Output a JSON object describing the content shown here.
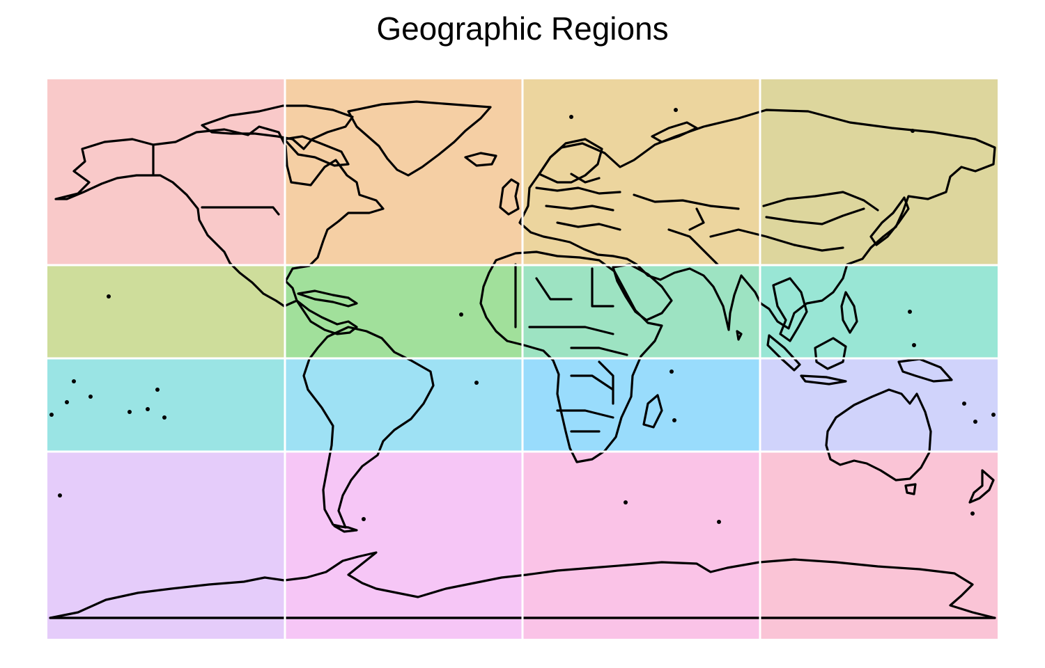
{
  "title": "Geographic Regions",
  "grid": {
    "lon_breaks": [
      -180,
      -90,
      0,
      90,
      180
    ],
    "lat_breaks": [
      -90,
      -30,
      0,
      30,
      90
    ],
    "lon_range": [
      -180,
      180
    ],
    "lat_range": [
      -90,
      90
    ],
    "divider_color": "#ffffff",
    "outline_color": "#000000"
  },
  "regions": [
    {
      "id": "r1-c1",
      "row": 0,
      "col": 0,
      "lon": [
        -180,
        -90
      ],
      "lat": [
        30,
        90
      ],
      "color": "#f9c9c9"
    },
    {
      "id": "r1-c2",
      "row": 0,
      "col": 1,
      "lon": [
        -90,
        0
      ],
      "lat": [
        30,
        90
      ],
      "color": "#f5cfa4"
    },
    {
      "id": "r1-c3",
      "row": 0,
      "col": 2,
      "lon": [
        0,
        90
      ],
      "lat": [
        30,
        90
      ],
      "color": "#ecd59e"
    },
    {
      "id": "r1-c4",
      "row": 0,
      "col": 3,
      "lon": [
        90,
        180
      ],
      "lat": [
        30,
        90
      ],
      "color": "#ddd69d"
    },
    {
      "id": "r2-c1",
      "row": 1,
      "col": 0,
      "lon": [
        -180,
        -90
      ],
      "lat": [
        0,
        30
      ],
      "color": "#cedd9b"
    },
    {
      "id": "r2-c2",
      "row": 1,
      "col": 1,
      "lon": [
        -90,
        0
      ],
      "lat": [
        0,
        30
      ],
      "color": "#a1e09b"
    },
    {
      "id": "r2-c3",
      "row": 1,
      "col": 2,
      "lon": [
        0,
        90
      ],
      "lat": [
        0,
        30
      ],
      "color": "#9de3c2"
    },
    {
      "id": "r2-c4",
      "row": 1,
      "col": 3,
      "lon": [
        90,
        180
      ],
      "lat": [
        0,
        30
      ],
      "color": "#99e6d5"
    },
    {
      "id": "r3-c1",
      "row": 2,
      "col": 0,
      "lon": [
        -180,
        -90
      ],
      "lat": [
        -30,
        0
      ],
      "color": "#9ae4e4"
    },
    {
      "id": "r3-c2",
      "row": 2,
      "col": 1,
      "lon": [
        -90,
        0
      ],
      "lat": [
        -30,
        0
      ],
      "color": "#9ee1f4"
    },
    {
      "id": "r3-c3",
      "row": 2,
      "col": 2,
      "lon": [
        0,
        90
      ],
      "lat": [
        -30,
        0
      ],
      "color": "#99dcfc"
    },
    {
      "id": "r3-c4",
      "row": 2,
      "col": 3,
      "lon": [
        90,
        180
      ],
      "lat": [
        -30,
        0
      ],
      "color": "#d0d3fb"
    },
    {
      "id": "r4-c1",
      "row": 3,
      "col": 0,
      "lon": [
        -180,
        -90
      ],
      "lat": [
        -90,
        -30
      ],
      "color": "#e5ccfa"
    },
    {
      "id": "r4-c2",
      "row": 3,
      "col": 1,
      "lon": [
        -90,
        0
      ],
      "lat": [
        -90,
        -30
      ],
      "color": "#f6c6f6"
    },
    {
      "id": "r4-c3",
      "row": 3,
      "col": 2,
      "lon": [
        0,
        90
      ],
      "lat": [
        -90,
        -30
      ],
      "color": "#fac3e7"
    },
    {
      "id": "r4-c4",
      "row": 3,
      "col": 3,
      "lon": [
        90,
        180
      ],
      "lat": [
        -90,
        -30
      ],
      "color": "#fac4d6"
    }
  ]
}
